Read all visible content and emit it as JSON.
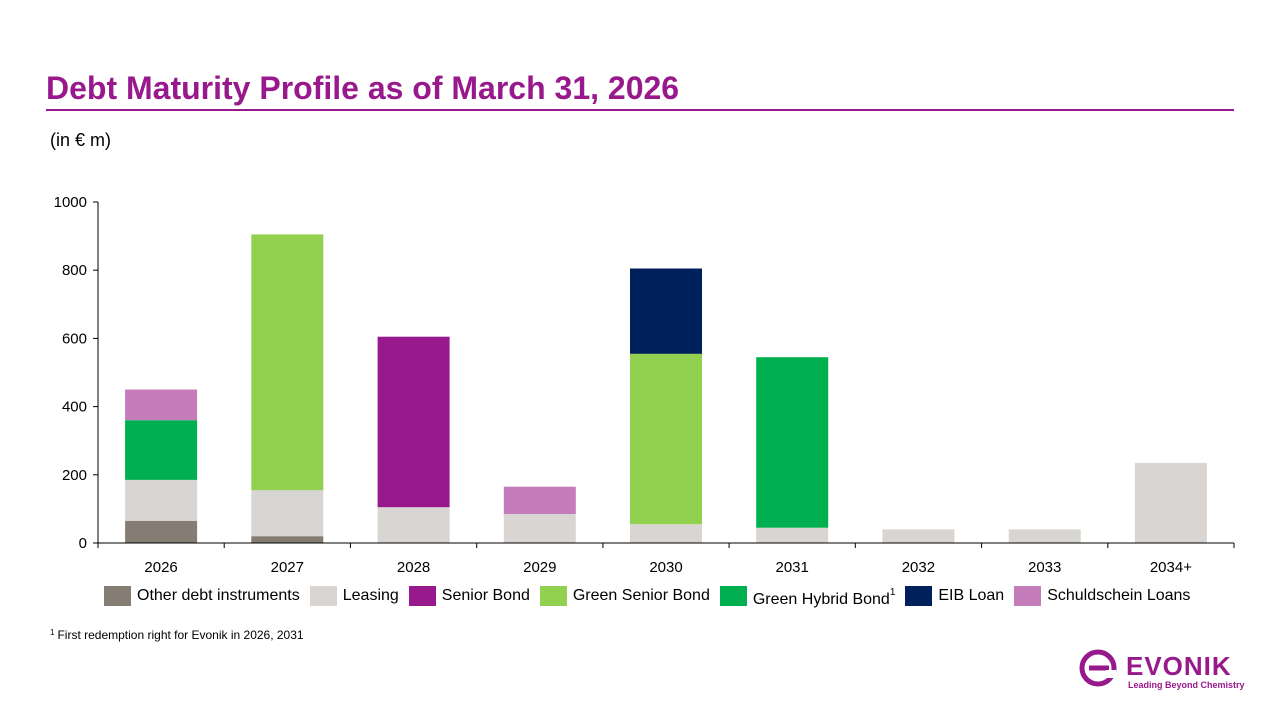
{
  "slide": {
    "title": "Debt Maturity Profile as of March 31, 2026",
    "units": "(in € m)",
    "footnote_marker": "1",
    "footnote_text": "First redemption right for Evonik in 2026, 2031"
  },
  "logo": {
    "wordmark": "EVONIK",
    "tagline": "Leading Beyond Chemistry",
    "color": "#98198b"
  },
  "chart_data": {
    "type": "bar",
    "stacked": true,
    "title": "",
    "xlabel": "",
    "ylabel": "",
    "ylim": [
      0,
      1000
    ],
    "yticks": [
      0,
      200,
      400,
      600,
      800,
      1000
    ],
    "grid": false,
    "legend_position": "bottom",
    "categories": [
      "2026",
      "2027",
      "2028",
      "2029",
      "2030",
      "2031",
      "2032",
      "2033",
      "2034+"
    ],
    "series": [
      {
        "name": "Other debt instruments",
        "color": "#857c73",
        "values": [
          65,
          20,
          0,
          0,
          0,
          0,
          0,
          0,
          0
        ]
      },
      {
        "name": "Leasing",
        "color": "#d9d5d2",
        "values": [
          120,
          135,
          105,
          85,
          55,
          45,
          40,
          40,
          235
        ]
      },
      {
        "name": "Senior Bond",
        "color": "#98198b",
        "values": [
          0,
          0,
          500,
          0,
          0,
          0,
          0,
          0,
          0
        ]
      },
      {
        "name": "Green Senior Bond",
        "color": "#92d050",
        "values": [
          0,
          750,
          0,
          0,
          500,
          0,
          0,
          0,
          0
        ]
      },
      {
        "name": "Green Hybrid Bond",
        "footnote": "1",
        "color": "#00b050",
        "values": [
          175,
          0,
          0,
          0,
          0,
          500,
          0,
          0,
          0
        ]
      },
      {
        "name": "EIB Loan",
        "color": "#00205b",
        "values": [
          0,
          0,
          0,
          0,
          250,
          0,
          0,
          0,
          0
        ]
      },
      {
        "name": "Schuldschein Loans",
        "color": "#c47cbb",
        "values": [
          90,
          0,
          0,
          80,
          0,
          0,
          0,
          0,
          0
        ]
      }
    ]
  }
}
